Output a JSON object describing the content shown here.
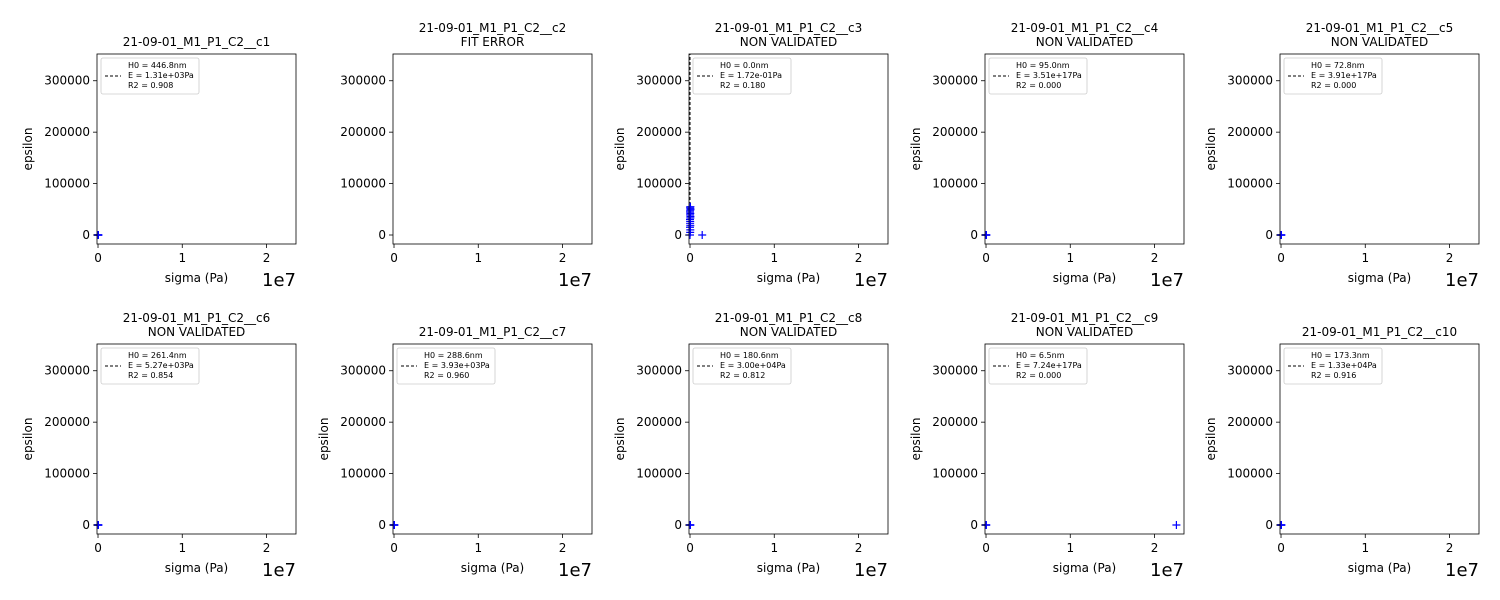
{
  "chart_data": [
    {
      "type": "scatter",
      "title": "21-09-01_M1_P1_C2__c1",
      "subtitle": "",
      "xlabel": "sigma (Pa)",
      "ylabel": "epsilon",
      "x_offset_text": "1e7",
      "xlim": [
        -120000,
        23500000
      ],
      "ylim": [
        -17500,
        352000
      ],
      "xticks": [
        0,
        10000000,
        20000000
      ],
      "xtick_labels": [
        "0",
        "1",
        "2"
      ],
      "yticks": [
        0,
        100000,
        200000,
        300000
      ],
      "ytick_labels": [
        "0",
        "100000",
        "200000",
        "300000"
      ],
      "legend": {
        "position": "top-left",
        "lines": [
          "H0 = 446.8nm",
          "E = 1.31e+03Pa",
          "R2 = 0.908"
        ]
      },
      "points": [
        {
          "x": 0,
          "y": 0
        },
        {
          "x": 5000,
          "y": 0
        },
        {
          "x": 10000,
          "y": 0
        },
        {
          "x": 20000,
          "y": 0
        },
        {
          "x": 30000,
          "y": 0
        },
        {
          "x": 40000,
          "y": 0
        }
      ],
      "fit_line": []
    },
    {
      "type": "scatter",
      "title": "21-09-01_M1_P1_C2__c2",
      "subtitle": "FIT ERROR",
      "xlabel": "",
      "ylabel": "",
      "x_offset_text": "1e7",
      "xlim": [
        -120000,
        23500000
      ],
      "ylim": [
        -17500,
        352000
      ],
      "xticks": [
        0,
        10000000,
        20000000
      ],
      "xtick_labels": [
        "0",
        "1",
        "2"
      ],
      "yticks": [
        0,
        100000,
        200000,
        300000
      ],
      "ytick_labels": [
        "0",
        "100000",
        "200000",
        "300000"
      ],
      "legend": null,
      "points": [],
      "fit_line": []
    },
    {
      "type": "scatter",
      "title": "21-09-01_M1_P1_C2__c3",
      "subtitle": "NON VALIDATED",
      "xlabel": "sigma (Pa)",
      "ylabel": "epsilon",
      "x_offset_text": "1e7",
      "xlim": [
        -120000,
        23500000
      ],
      "ylim": [
        -17500,
        352000
      ],
      "xticks": [
        0,
        10000000,
        20000000
      ],
      "xtick_labels": [
        "0",
        "1",
        "2"
      ],
      "yticks": [
        0,
        100000,
        200000,
        300000
      ],
      "ytick_labels": [
        "0",
        "100000",
        "200000",
        "300000"
      ],
      "legend": {
        "position": "top-left",
        "lines": [
          "H0 = 0.0nm",
          "E = 1.72e-01Pa",
          "R2 = 0.180"
        ]
      },
      "points": [
        {
          "x": 0,
          "y": 0
        },
        {
          "x": 20000,
          "y": 5000
        },
        {
          "x": 30000,
          "y": 10000
        },
        {
          "x": 0,
          "y": 15000
        },
        {
          "x": 40000,
          "y": 18000
        },
        {
          "x": 10000,
          "y": 22000
        },
        {
          "x": 20000,
          "y": 26000
        },
        {
          "x": 0,
          "y": 30000
        },
        {
          "x": 30000,
          "y": 33000
        },
        {
          "x": 50000,
          "y": 36000
        },
        {
          "x": 10000,
          "y": 39000
        },
        {
          "x": 40000,
          "y": 42000
        },
        {
          "x": 0,
          "y": 45000
        },
        {
          "x": 20000,
          "y": 48000
        },
        {
          "x": 60000,
          "y": 50000
        },
        {
          "x": 30000,
          "y": 52000
        },
        {
          "x": 10000,
          "y": 54000
        },
        {
          "x": 50000,
          "y": 55000
        },
        {
          "x": 1450000,
          "y": 0
        }
      ],
      "fit_line": [
        {
          "x": 0,
          "y": 0
        },
        {
          "x": 0,
          "y": 352000
        }
      ]
    },
    {
      "type": "scatter",
      "title": "21-09-01_M1_P1_C2__c4",
      "subtitle": "NON VALIDATED",
      "xlabel": "sigma (Pa)",
      "ylabel": "epsilon",
      "x_offset_text": "1e7",
      "xlim": [
        -120000,
        23500000
      ],
      "ylim": [
        -17500,
        352000
      ],
      "xticks": [
        0,
        10000000,
        20000000
      ],
      "xtick_labels": [
        "0",
        "1",
        "2"
      ],
      "yticks": [
        0,
        100000,
        200000,
        300000
      ],
      "ytick_labels": [
        "0",
        "100000",
        "200000",
        "300000"
      ],
      "legend": {
        "position": "top-left",
        "lines": [
          "H0 = 95.0nm",
          "E = 3.51e+17Pa",
          "R2 = 0.000"
        ]
      },
      "points": [
        {
          "x": 0,
          "y": 0
        },
        {
          "x": 5000,
          "y": 0
        },
        {
          "x": 10000,
          "y": 0
        },
        {
          "x": 20000,
          "y": 0
        },
        {
          "x": 30000,
          "y": 0
        }
      ],
      "fit_line": []
    },
    {
      "type": "scatter",
      "title": "21-09-01_M1_P1_C2__c5",
      "subtitle": "NON VALIDATED",
      "xlabel": "sigma (Pa)",
      "ylabel": "epsilon",
      "x_offset_text": "1e7",
      "xlim": [
        -120000,
        23500000
      ],
      "ylim": [
        -17500,
        352000
      ],
      "xticks": [
        0,
        10000000,
        20000000
      ],
      "xtick_labels": [
        "0",
        "1",
        "2"
      ],
      "yticks": [
        0,
        100000,
        200000,
        300000
      ],
      "ytick_labels": [
        "0",
        "100000",
        "200000",
        "300000"
      ],
      "legend": {
        "position": "top-left",
        "lines": [
          "H0 = 72.8nm",
          "E = 3.91e+17Pa",
          "R2 = 0.000"
        ]
      },
      "points": [
        {
          "x": 0,
          "y": 0
        },
        {
          "x": 5000,
          "y": 0
        },
        {
          "x": 10000,
          "y": 0
        },
        {
          "x": 20000,
          "y": 0
        },
        {
          "x": 30000,
          "y": 0
        }
      ],
      "fit_line": []
    },
    {
      "type": "scatter",
      "title": "21-09-01_M1_P1_C2__c6",
      "subtitle": "NON VALIDATED",
      "xlabel": "sigma (Pa)",
      "ylabel": "epsilon",
      "x_offset_text": "1e7",
      "xlim": [
        -120000,
        23500000
      ],
      "ylim": [
        -17500,
        352000
      ],
      "xticks": [
        0,
        10000000,
        20000000
      ],
      "xtick_labels": [
        "0",
        "1",
        "2"
      ],
      "yticks": [
        0,
        100000,
        200000,
        300000
      ],
      "ytick_labels": [
        "0",
        "100000",
        "200000",
        "300000"
      ],
      "legend": {
        "position": "top-left",
        "lines": [
          "H0 = 261.4nm",
          "E = 5.27e+03Pa",
          "R2 = 0.854"
        ]
      },
      "points": [
        {
          "x": 0,
          "y": 0
        },
        {
          "x": 5000,
          "y": 0
        },
        {
          "x": 10000,
          "y": 0
        },
        {
          "x": 20000,
          "y": 0
        },
        {
          "x": 30000,
          "y": 0
        },
        {
          "x": 40000,
          "y": 0
        }
      ],
      "fit_line": []
    },
    {
      "type": "scatter",
      "title": "21-09-01_M1_P1_C2__c7",
      "subtitle": "",
      "xlabel": "sigma (Pa)",
      "ylabel": "epsilon",
      "x_offset_text": "1e7",
      "xlim": [
        -120000,
        23500000
      ],
      "ylim": [
        -17500,
        352000
      ],
      "xticks": [
        0,
        10000000,
        20000000
      ],
      "xtick_labels": [
        "0",
        "1",
        "2"
      ],
      "yticks": [
        0,
        100000,
        200000,
        300000
      ],
      "ytick_labels": [
        "0",
        "100000",
        "200000",
        "300000"
      ],
      "legend": {
        "position": "top-left",
        "lines": [
          "H0 = 288.6nm",
          "E = 3.93e+03Pa",
          "R2 = 0.960"
        ]
      },
      "points": [
        {
          "x": 0,
          "y": 0
        },
        {
          "x": 5000,
          "y": 0
        },
        {
          "x": 10000,
          "y": 0
        },
        {
          "x": 20000,
          "y": 0
        },
        {
          "x": 30000,
          "y": 0
        },
        {
          "x": 40000,
          "y": 0
        }
      ],
      "fit_line": []
    },
    {
      "type": "scatter",
      "title": "21-09-01_M1_P1_C2__c8",
      "subtitle": "NON VALIDATED",
      "xlabel": "sigma (Pa)",
      "ylabel": "epsilon",
      "x_offset_text": "1e7",
      "xlim": [
        -120000,
        23500000
      ],
      "ylim": [
        -17500,
        352000
      ],
      "xticks": [
        0,
        10000000,
        20000000
      ],
      "xtick_labels": [
        "0",
        "1",
        "2"
      ],
      "yticks": [
        0,
        100000,
        200000,
        300000
      ],
      "ytick_labels": [
        "0",
        "100000",
        "200000",
        "300000"
      ],
      "legend": {
        "position": "top-left",
        "lines": [
          "H0 = 180.6nm",
          "E = 3.00e+04Pa",
          "R2 = 0.812"
        ]
      },
      "points": [
        {
          "x": 0,
          "y": 0
        },
        {
          "x": 5000,
          "y": 0
        },
        {
          "x": 10000,
          "y": 0
        },
        {
          "x": 20000,
          "y": 0
        },
        {
          "x": 30000,
          "y": 0
        }
      ],
      "fit_line": []
    },
    {
      "type": "scatter",
      "title": "21-09-01_M1_P1_C2__c9",
      "subtitle": "NON VALIDATED",
      "xlabel": "sigma (Pa)",
      "ylabel": "epsilon",
      "x_offset_text": "1e7",
      "xlim": [
        -120000,
        23500000
      ],
      "ylim": [
        -17500,
        352000
      ],
      "xticks": [
        0,
        10000000,
        20000000
      ],
      "xtick_labels": [
        "0",
        "1",
        "2"
      ],
      "yticks": [
        0,
        100000,
        200000,
        300000
      ],
      "ytick_labels": [
        "0",
        "100000",
        "200000",
        "300000"
      ],
      "legend": {
        "position": "top-left",
        "lines": [
          "H0 = 6.5nm",
          "E = 7.24e+17Pa",
          "R2 = 0.000"
        ]
      },
      "points": [
        {
          "x": 0,
          "y": 0
        },
        {
          "x": 5000,
          "y": 0
        },
        {
          "x": 10000,
          "y": 0
        },
        {
          "x": 20000,
          "y": 0
        },
        {
          "x": 22600000,
          "y": 0
        }
      ],
      "fit_line": []
    },
    {
      "type": "scatter",
      "title": "21-09-01_M1_P1_C2__c10",
      "subtitle": "",
      "xlabel": "sigma (Pa)",
      "ylabel": "epsilon",
      "x_offset_text": "1e7",
      "xlim": [
        -120000,
        23500000
      ],
      "ylim": [
        -17500,
        352000
      ],
      "xticks": [
        0,
        10000000,
        20000000
      ],
      "xtick_labels": [
        "0",
        "1",
        "2"
      ],
      "yticks": [
        0,
        100000,
        200000,
        300000
      ],
      "ytick_labels": [
        "0",
        "100000",
        "200000",
        "300000"
      ],
      "legend": {
        "position": "top-left",
        "lines": [
          "H0 = 173.3nm",
          "E = 1.33e+04Pa",
          "R2 = 0.916"
        ]
      },
      "points": [
        {
          "x": 0,
          "y": 0
        },
        {
          "x": 5000,
          "y": 0
        },
        {
          "x": 10000,
          "y": 0
        },
        {
          "x": 20000,
          "y": 0
        },
        {
          "x": 30000,
          "y": 0
        },
        {
          "x": 40000,
          "y": 0
        }
      ],
      "fit_line": []
    }
  ],
  "style": {
    "marker_color": "#0000ff",
    "fit_color": "#000000",
    "axis_color": "#000000",
    "background": "#ffffff"
  }
}
